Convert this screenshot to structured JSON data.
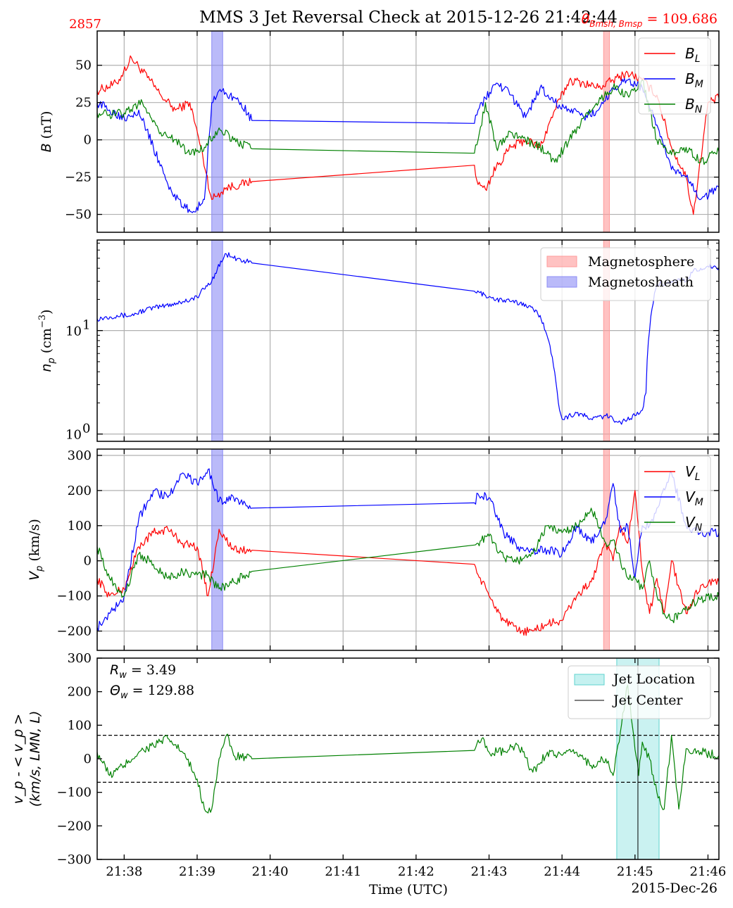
{
  "title": "MMS 3 Jet Reversal Check at 2015-12-26 21:42:44",
  "corner_left": "2857",
  "corner_right_sym": "θ",
  "corner_right_sub": "Bmsh, Bmsp",
  "corner_right_val": " = 109.686",
  "xlabel": "Time (UTC)",
  "date_label": "2015-Dec-26",
  "xticks": [
    "21:38",
    "21:39",
    "21:40",
    "21:41",
    "21:42",
    "21:43",
    "21:44",
    "21:45",
    "21:46"
  ],
  "colors": {
    "red": "#ff0000",
    "blue": "#0000ff",
    "green": "#008000",
    "msp": "#ff9a9a",
    "msh": "#8c8cf5",
    "jet": "#9ee8e6"
  },
  "chart_data": [
    {
      "type": "line",
      "panel": 1,
      "ylabel": "B (nT)",
      "ylim": [
        -62,
        73
      ],
      "yticks": [
        "50",
        "25",
        "0",
        "−25",
        "−50"
      ],
      "grid": true,
      "legend_position": "top-right",
      "x_minutes_range": [
        21.63,
        30.15
      ],
      "series": [
        {
          "name": "B_L",
          "legend": "B",
          "sub": "L",
          "color": "#ff0000",
          "x": [
            21.63,
            21.9,
            22.1,
            22.35,
            22.5,
            22.7,
            22.9,
            23.05,
            23.2,
            23.4,
            23.6,
            23.75,
            26.8,
            26.85,
            26.95,
            27.1,
            27.3,
            27.5,
            27.7,
            27.9,
            28.1,
            28.3,
            28.5,
            28.7,
            28.9,
            29.1,
            29.3,
            29.5,
            29.7,
            29.8,
            30.0,
            30.15
          ],
          "y": [
            33,
            38,
            55,
            40,
            30,
            20,
            25,
            -5,
            -40,
            -32,
            -30,
            -28,
            -17,
            -30,
            -33,
            -18,
            -5,
            0,
            -5,
            20,
            40,
            38,
            35,
            40,
            45,
            40,
            30,
            -5,
            -25,
            -50,
            25,
            28
          ]
        },
        {
          "name": "B_M",
          "legend": "B",
          "sub": "M",
          "color": "#0000ff",
          "x": [
            21.63,
            21.8,
            22.0,
            22.2,
            22.4,
            22.6,
            22.8,
            22.95,
            23.1,
            23.2,
            23.3,
            23.45,
            23.6,
            23.75,
            26.8,
            26.85,
            26.95,
            27.1,
            27.3,
            27.5,
            27.7,
            27.9,
            28.1,
            28.3,
            28.5,
            28.7,
            28.9,
            29.1,
            29.3,
            29.5,
            29.7,
            29.9,
            30.15
          ],
          "y": [
            25,
            20,
            15,
            20,
            -5,
            -30,
            -45,
            -48,
            -40,
            25,
            33,
            30,
            25,
            13,
            11,
            20,
            28,
            38,
            30,
            15,
            35,
            25,
            20,
            15,
            20,
            35,
            40,
            35,
            10,
            -20,
            -25,
            -40,
            -32
          ]
        },
        {
          "name": "B_N",
          "legend": "B",
          "sub": "N",
          "color": "#008000",
          "x": [
            21.63,
            21.8,
            22.0,
            22.25,
            22.5,
            22.7,
            22.9,
            23.1,
            23.3,
            23.5,
            23.75,
            26.8,
            26.85,
            26.95,
            27.1,
            27.3,
            27.5,
            27.7,
            27.9,
            28.1,
            28.3,
            28.5,
            28.7,
            28.9,
            29.1,
            29.3,
            29.5,
            29.7,
            29.9,
            30.15
          ],
          "y": [
            18,
            17,
            18,
            25,
            5,
            0,
            -10,
            -5,
            8,
            0,
            -6,
            -9,
            0,
            25,
            -5,
            5,
            0,
            -5,
            -15,
            0,
            15,
            25,
            35,
            30,
            40,
            0,
            -10,
            -5,
            -15,
            -8
          ]
        }
      ],
      "bands": [
        {
          "from": 23.2,
          "to": 23.35,
          "color": "#8c8cf5"
        },
        {
          "from": 28.57,
          "to": 28.65,
          "color": "#ff9a9a"
        }
      ]
    },
    {
      "type": "line",
      "panel": 2,
      "ylabel": "n_p (cm^-3)",
      "yscale": "log",
      "ylim": [
        0.85,
        75
      ],
      "yticks_log": [
        {
          "v": 10,
          "label": "10",
          "exp": "1"
        },
        {
          "v": 1,
          "label": "10",
          "exp": "0"
        }
      ],
      "grid": true,
      "legend_position": "top-right",
      "legend": [
        {
          "label": "Magnetosphere",
          "color": "#ff9a9a"
        },
        {
          "label": "Magnetosheath",
          "color": "#8c8cf5"
        }
      ],
      "series": [
        {
          "name": "n_p",
          "color": "#0000ff",
          "x": [
            21.63,
            21.9,
            22.1,
            22.3,
            22.5,
            22.8,
            23.0,
            23.2,
            23.4,
            23.5,
            23.75,
            26.8,
            26.95,
            27.1,
            27.3,
            27.5,
            27.7,
            27.85,
            27.95,
            28.0,
            28.2,
            28.4,
            28.6,
            28.8,
            29.0,
            29.1,
            29.15,
            29.2,
            29.3,
            29.5,
            29.7,
            29.8,
            29.9,
            30.0,
            30.15
          ],
          "y": [
            13,
            14,
            14,
            16,
            17,
            19,
            21,
            30,
            55,
            50,
            45,
            24,
            22,
            20,
            19,
            18,
            14,
            6,
            2,
            1.4,
            1.6,
            1.4,
            1.5,
            1.3,
            1.5,
            1.7,
            2.5,
            10,
            28,
            30,
            30,
            38,
            40,
            42,
            40
          ]
        }
      ],
      "bands": [
        {
          "from": 23.2,
          "to": 23.35,
          "color": "#8c8cf5"
        },
        {
          "from": 28.57,
          "to": 28.65,
          "color": "#ff9a9a"
        }
      ]
    },
    {
      "type": "line",
      "panel": 3,
      "ylabel": "V_p (km/s)",
      "ylim": [
        -255,
        318
      ],
      "yticks": [
        "300",
        "200",
        "100",
        "0",
        "−100",
        "−200"
      ],
      "grid": true,
      "legend_position": "top-right",
      "series": [
        {
          "name": "V_L",
          "legend": "V",
          "sub": "L",
          "color": "#ff0000",
          "x": [
            21.63,
            21.8,
            22.0,
            22.2,
            22.4,
            22.6,
            22.8,
            23.0,
            23.15,
            23.3,
            23.5,
            23.75,
            26.8,
            26.85,
            27.0,
            27.2,
            27.4,
            27.6,
            27.8,
            28.0,
            28.2,
            28.4,
            28.6,
            28.7,
            28.8,
            28.9,
            29.0,
            29.1,
            29.2,
            29.3,
            29.4,
            29.5,
            29.7,
            29.9,
            30.15
          ],
          "y": [
            -50,
            -100,
            -80,
            40,
            80,
            90,
            50,
            40,
            -100,
            90,
            30,
            30,
            -10,
            -40,
            -100,
            -170,
            -200,
            -200,
            -180,
            -170,
            -100,
            -60,
            50,
            0,
            100,
            50,
            200,
            -30,
            -150,
            -50,
            -150,
            0,
            -150,
            -70,
            -60
          ]
        },
        {
          "name": "V_M",
          "legend": "V",
          "sub": "M",
          "color": "#0000ff",
          "x": [
            21.63,
            21.8,
            22.0,
            22.2,
            22.4,
            22.6,
            22.8,
            23.0,
            23.15,
            23.3,
            23.5,
            23.75,
            26.8,
            26.85,
            27.0,
            27.2,
            27.4,
            27.6,
            27.8,
            28.0,
            28.2,
            28.4,
            28.6,
            28.7,
            28.8,
            28.9,
            29.0,
            29.1,
            29.2,
            29.3,
            29.5,
            29.7,
            29.9,
            30.15
          ],
          "y": [
            -190,
            -150,
            -100,
            120,
            200,
            180,
            250,
            220,
            260,
            170,
            180,
            150,
            165,
            190,
            180,
            80,
            40,
            30,
            30,
            20,
            100,
            50,
            120,
            220,
            80,
            100,
            -50,
            100,
            100,
            150,
            250,
            100,
            80,
            80
          ]
        },
        {
          "name": "V_N",
          "legend": "V",
          "sub": "N",
          "color": "#008000",
          "x": [
            21.63,
            21.8,
            22.0,
            22.2,
            22.4,
            22.6,
            22.8,
            23.0,
            23.15,
            23.3,
            23.5,
            23.75,
            26.8,
            26.85,
            27.0,
            27.2,
            27.4,
            27.6,
            27.8,
            28.0,
            28.2,
            28.4,
            28.6,
            28.7,
            28.8,
            28.9,
            29.0,
            29.1,
            29.2,
            29.3,
            29.4,
            29.5,
            29.7,
            29.9,
            30.15
          ],
          "y": [
            40,
            -50,
            -100,
            20,
            -10,
            -50,
            -30,
            -40,
            -40,
            -80,
            -60,
            -30,
            45,
            50,
            70,
            10,
            0,
            20,
            100,
            80,
            100,
            150,
            50,
            60,
            0,
            -50,
            -50,
            -80,
            0,
            -100,
            -150,
            -170,
            -130,
            -110,
            -100
          ]
        }
      ],
      "bands": [
        {
          "from": 23.2,
          "to": 23.35,
          "color": "#8c8cf5"
        },
        {
          "from": 28.57,
          "to": 28.65,
          "color": "#ff9a9a"
        }
      ]
    },
    {
      "type": "line",
      "panel": 4,
      "ylabel_line1": "v_p - < v_p >",
      "ylabel_line2": "(km/s, LMN, L)",
      "ylim": [
        -300,
        300
      ],
      "yticks": [
        "300",
        "200",
        "100",
        "0",
        "−100",
        "−200",
        "−300"
      ],
      "grid": false,
      "legend_position": "top-right",
      "annotation_1": "R_w = 3.49",
      "annotation_2": "Θ_w = 129.88",
      "ann1_sym": "R",
      "ann1_sub": "w",
      "ann1_val": " = 3.49",
      "ann2_sym": "Θ",
      "ann2_sub": "w",
      "ann2_val": " = 129.88",
      "legend": [
        {
          "label": "Jet Location",
          "color": "#9ee8e6"
        },
        {
          "label": "Jet Center",
          "color": "#000000"
        }
      ],
      "dashed_lines_y": [
        70,
        -70
      ],
      "jet_band": {
        "from": 28.75,
        "to": 29.33
      },
      "jet_center": 29.04,
      "series": [
        {
          "name": "residual",
          "color": "#008000",
          "x": [
            21.63,
            21.8,
            22.0,
            22.2,
            22.4,
            22.6,
            22.8,
            23.0,
            23.1,
            23.2,
            23.3,
            23.4,
            23.5,
            23.75,
            26.8,
            26.9,
            27.0,
            27.2,
            27.4,
            27.6,
            27.8,
            28.0,
            28.2,
            28.4,
            28.6,
            28.7,
            28.8,
            28.9,
            28.95,
            29.05,
            29.1,
            29.2,
            29.3,
            29.4,
            29.5,
            29.6,
            29.7,
            29.9,
            30.15
          ],
          "y": [
            20,
            -50,
            -20,
            20,
            40,
            60,
            20,
            -60,
            -150,
            -150,
            0,
            70,
            10,
            0,
            25,
            60,
            20,
            20,
            40,
            -40,
            20,
            10,
            20,
            -20,
            0,
            -50,
            80,
            220,
            120,
            -50,
            50,
            0,
            -100,
            -150,
            70,
            -150,
            30,
            20,
            10
          ]
        }
      ]
    }
  ]
}
